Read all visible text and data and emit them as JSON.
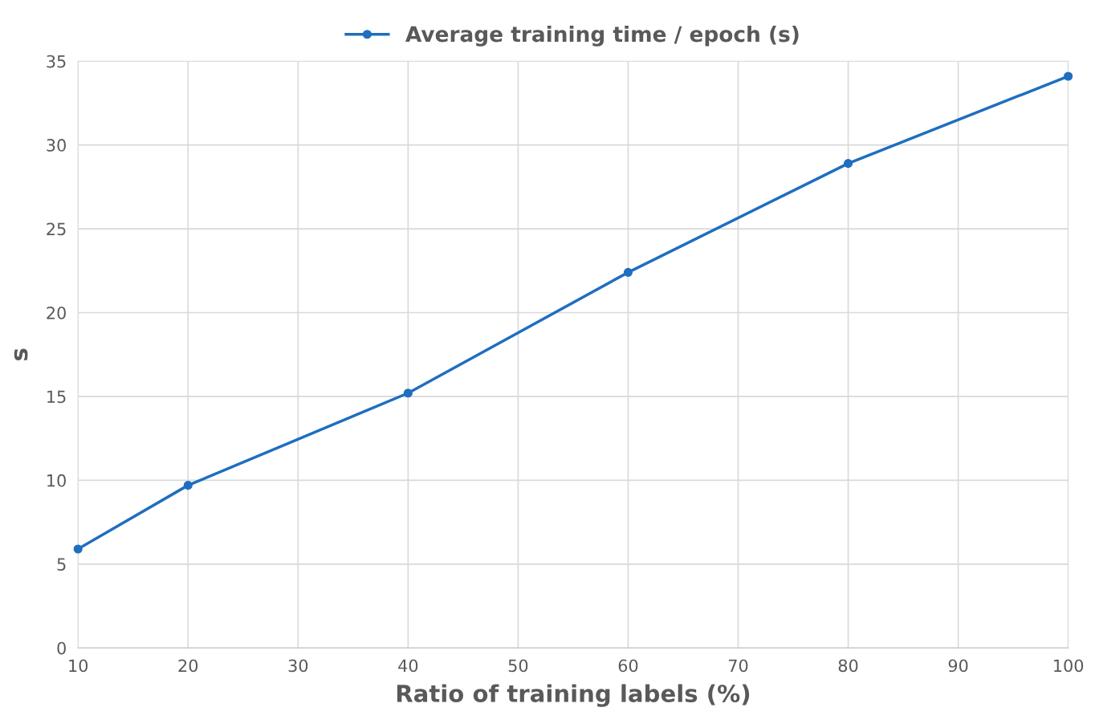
{
  "chart_data": {
    "type": "line",
    "xlabel": "Ratio of training labels (%)",
    "ylabel": "s",
    "x": [
      10,
      20,
      40,
      60,
      80,
      100
    ],
    "series": [
      {
        "name": "Average training time / epoch (s)",
        "color": "#1f6ebf",
        "values": [
          5.9,
          9.7,
          15.2,
          22.4,
          28.9,
          34.1
        ]
      }
    ],
    "xlim": [
      10,
      100
    ],
    "xticks": [
      10,
      20,
      30,
      40,
      50,
      60,
      70,
      80,
      90,
      100
    ],
    "ylim": [
      0,
      35
    ],
    "yticks": [
      0,
      5,
      10,
      15,
      20,
      25,
      30,
      35
    ],
    "grid": true,
    "legend": "top",
    "marker": "circle",
    "line_style": "solid"
  }
}
